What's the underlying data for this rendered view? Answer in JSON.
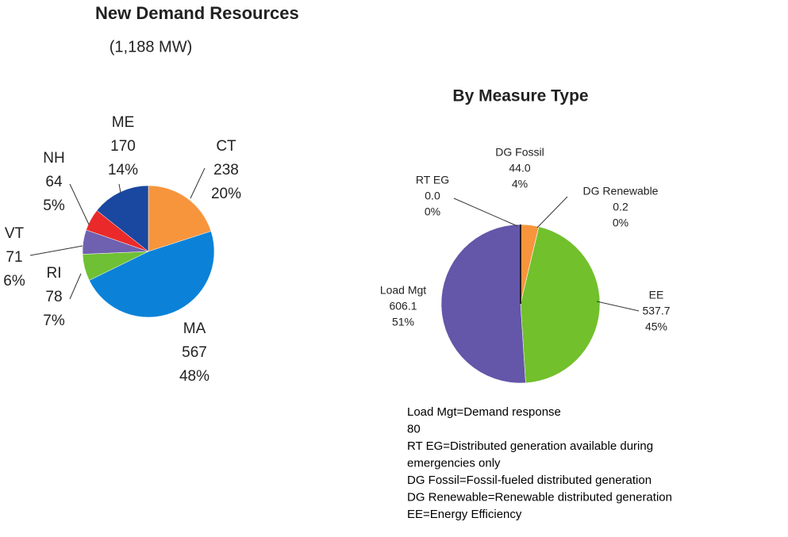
{
  "chart_data": [
    {
      "type": "pie",
      "title": "New Demand Resources",
      "subtitle": "(1,188 MW)",
      "categories": [
        "CT",
        "MA",
        "RI",
        "VT",
        "NH",
        "ME"
      ],
      "values": [
        238,
        567,
        78,
        71,
        64,
        170
      ],
      "percent_labels": [
        "20%",
        "48%",
        "7%",
        "6%",
        "5%",
        "14%"
      ],
      "colors": [
        "#f7953d",
        "#0b82d8",
        "#6fc034",
        "#7060b0",
        "#ea2a2a",
        "#1a47a0"
      ]
    },
    {
      "type": "pie",
      "title": "By Measure Type",
      "categories": [
        "DG Fossil",
        "DG Renewable",
        "EE",
        "Load Mgt",
        "RT EG"
      ],
      "values": [
        44.0,
        0.2,
        537.7,
        606.1,
        0.0
      ],
      "value_labels": [
        "44.0",
        "0.2",
        "537.7",
        "606.1",
        "0.0"
      ],
      "percent_labels": [
        "4%",
        "0%",
        "45%",
        "51%",
        "0%"
      ],
      "colors": [
        "#f7953d",
        "#2e7d32",
        "#72c02c",
        "#6456a8",
        "#000000"
      ],
      "notes": [
        "Load Mgt=Demand response",
        "80",
        "RT EG=Distributed generation available during",
        "emergencies only",
        "DG Fossil=Fossil-fueled distributed generation",
        "DG Renewable=Renewable distributed generation",
        "EE=Energy Efficiency"
      ]
    }
  ]
}
